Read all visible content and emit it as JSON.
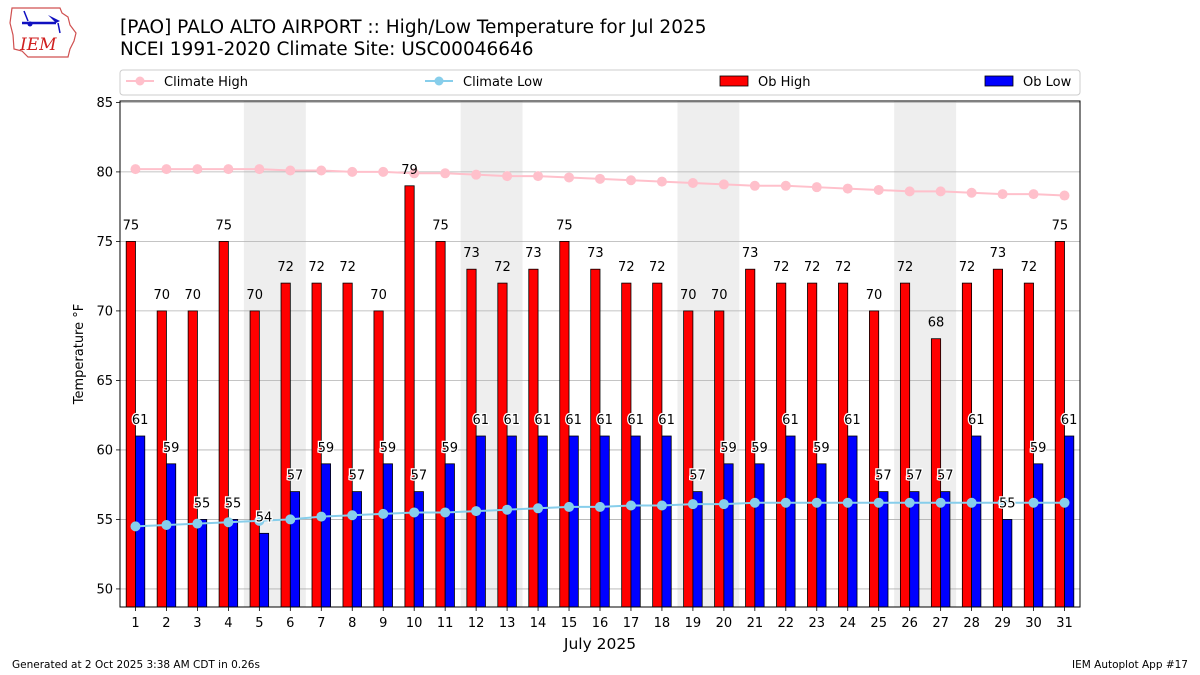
{
  "header": {
    "title_line1": "[PAO] PALO ALTO AIRPORT :: High/Low Temperature for Jul 2025",
    "title_line2": "NCEI 1991-2020 Climate Site: USC00046646",
    "logo_text": "IEM"
  },
  "footer": {
    "generated": "Generated at 2 Oct 2025 3:38 AM CDT in 0.26s",
    "app": "IEM Autoplot App #17"
  },
  "colors": {
    "ob_high": "#ff0000",
    "ob_low": "#0000ff",
    "climate_high": "#ffc0cb",
    "climate_low": "#87ceeb",
    "weekend_shade": "#eeeeee",
    "grid": "#b0b0b0"
  },
  "chart_data": {
    "type": "bar",
    "title": "[PAO] PALO ALTO AIRPORT :: High/Low Temperature for Jul 2025",
    "subtitle": "NCEI 1991-2020 Climate Site: USC00046646",
    "xlabel": "July 2025",
    "ylabel": "Temperature °F",
    "ylim": [
      48.7,
      85.1
    ],
    "yticks": [
      50,
      55,
      60,
      65,
      70,
      75,
      80,
      85
    ],
    "grid": true,
    "legend_position": "top",
    "legend": [
      "Climate High",
      "Climate Low",
      "Ob High",
      "Ob Low"
    ],
    "categories": [
      1,
      2,
      3,
      4,
      5,
      6,
      7,
      8,
      9,
      10,
      11,
      12,
      13,
      14,
      15,
      16,
      17,
      18,
      19,
      20,
      21,
      22,
      23,
      24,
      25,
      26,
      27,
      28,
      29,
      30,
      31
    ],
    "shaded_days": [
      [
        5,
        6
      ],
      [
        12,
        13
      ],
      [
        19,
        20
      ],
      [
        26,
        27
      ]
    ],
    "series": [
      {
        "name": "Ob High",
        "kind": "bar",
        "values": [
          75,
          70,
          70,
          75,
          70,
          72,
          72,
          72,
          70,
          79,
          75,
          73,
          72,
          73,
          75,
          73,
          72,
          72,
          70,
          70,
          73,
          72,
          72,
          72,
          70,
          72,
          68,
          72,
          73,
          72,
          75
        ]
      },
      {
        "name": "Ob Low",
        "kind": "bar",
        "values": [
          61,
          59,
          55,
          55,
          54,
          57,
          59,
          57,
          59,
          57,
          59,
          61,
          61,
          61,
          61,
          61,
          61,
          61,
          57,
          59,
          59,
          61,
          59,
          61,
          57,
          57,
          57,
          61,
          55,
          59,
          61
        ]
      },
      {
        "name": "Climate High",
        "kind": "line",
        "values": [
          80.2,
          80.2,
          80.2,
          80.2,
          80.2,
          80.1,
          80.1,
          80.0,
          80.0,
          79.9,
          79.9,
          79.8,
          79.7,
          79.7,
          79.6,
          79.5,
          79.4,
          79.3,
          79.2,
          79.1,
          79.0,
          79.0,
          78.9,
          78.8,
          78.7,
          78.6,
          78.6,
          78.5,
          78.4,
          78.4,
          78.3
        ]
      },
      {
        "name": "Climate Low",
        "kind": "line",
        "values": [
          54.5,
          54.6,
          54.7,
          54.8,
          54.9,
          55.0,
          55.2,
          55.3,
          55.4,
          55.5,
          55.5,
          55.6,
          55.7,
          55.8,
          55.9,
          55.9,
          56.0,
          56.0,
          56.1,
          56.1,
          56.2,
          56.2,
          56.2,
          56.2,
          56.2,
          56.2,
          56.2,
          56.2,
          56.2,
          56.2,
          56.2
        ]
      }
    ]
  }
}
